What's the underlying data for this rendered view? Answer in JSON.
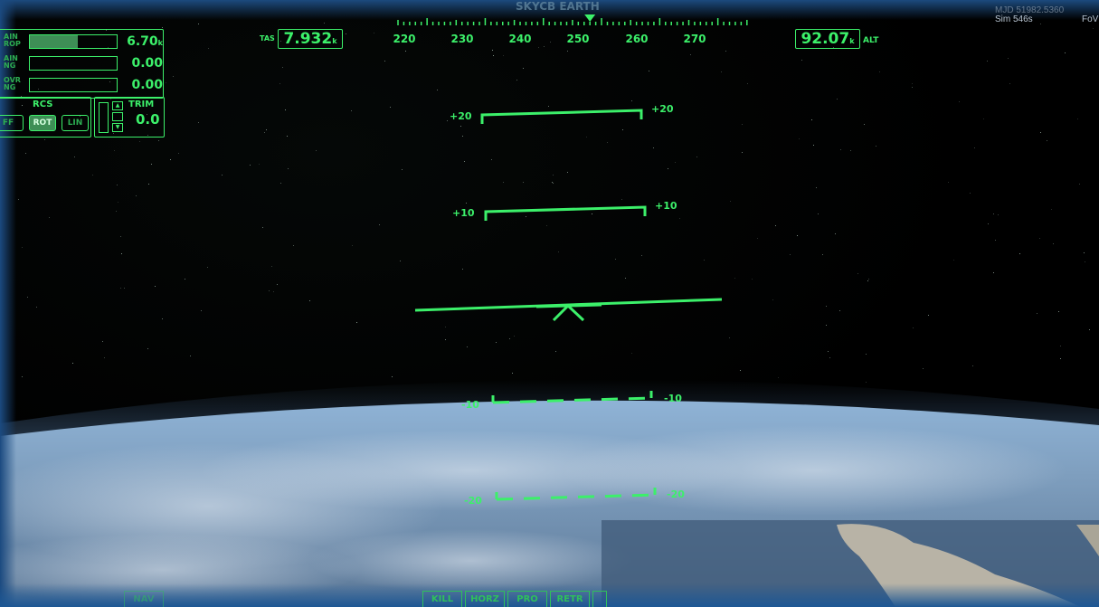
{
  "top_title": "SKYCB EARTH",
  "engines": [
    {
      "label_top": "AIN",
      "label_bottom": "ROP",
      "value": "6.70",
      "unit": "k",
      "fill": 0.55
    },
    {
      "label_top": "AIN",
      "label_bottom": "NG",
      "value": "0.00",
      "unit": "",
      "fill": 0.0
    },
    {
      "label_top": "OVR",
      "label_bottom": "NG",
      "value": "0.00",
      "unit": "",
      "fill": 0.0
    }
  ],
  "rcs": {
    "title": "RCS",
    "off_label": "FF",
    "rot_label": "ROT",
    "lin_label": "LIN",
    "active": "ROT"
  },
  "trim": {
    "label": "TRIM",
    "value": "0.0"
  },
  "tas": {
    "label": "TAS",
    "value": "7.932",
    "unit": "k"
  },
  "alt": {
    "value": "92.07",
    "unit": "k",
    "label": "ALT"
  },
  "heading": {
    "ticks": [
      "220",
      "230",
      "240",
      "250",
      "260",
      "270"
    ],
    "current": 248
  },
  "pitch_ladder": {
    "plus20": "+20",
    "plus10": "+10",
    "minus10": "-10",
    "minus20": "-20"
  },
  "status": {
    "mjd": "MJD 51982.5360",
    "sim": "Sim  546s",
    "fov": "FoV"
  },
  "bottom_buttons": [
    "KILL",
    "HORZ",
    "PRO",
    "RETR"
  ],
  "bottom_left_button": "NAV",
  "colors": {
    "hud": "#3cf06a",
    "frame": "#1d5794"
  }
}
